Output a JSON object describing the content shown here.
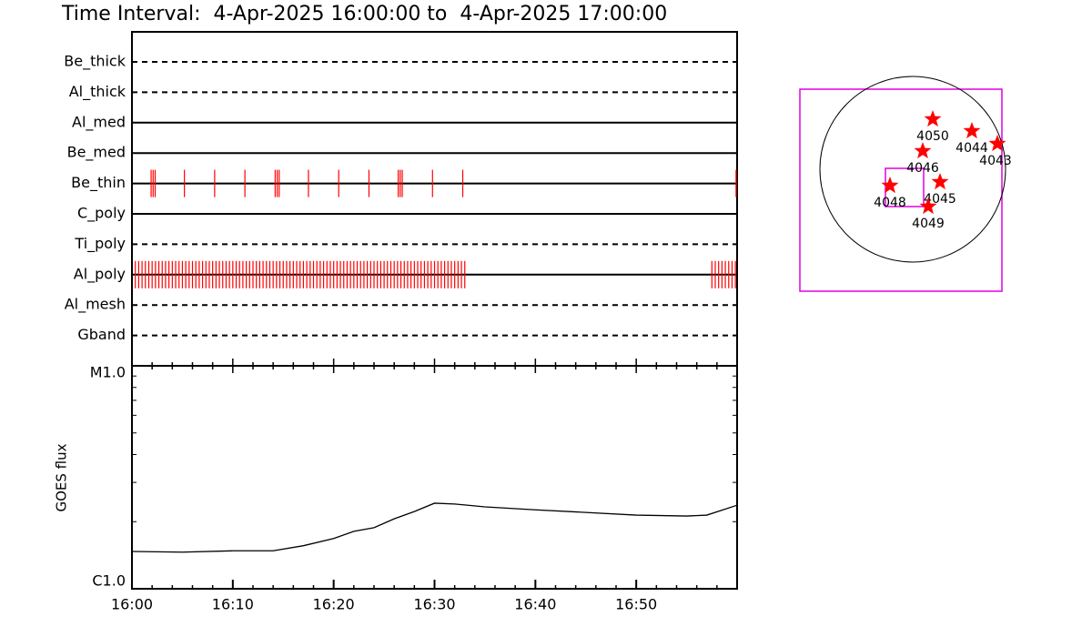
{
  "chart_data": [
    {
      "type": "timeline",
      "title": "Time Interval:  4-Apr-2025 16:00:00 to  4-Apr-2025 17:00:00",
      "xlim": [
        "16:00",
        "17:00"
      ],
      "exposure_color": "#ff0000",
      "filters": [
        {
          "name": "Be_thick",
          "line": "dashed",
          "exposures": []
        },
        {
          "name": "Al_thick",
          "line": "dashed",
          "exposures": []
        },
        {
          "name": "Al_med",
          "line": "solid",
          "exposures": []
        },
        {
          "name": "Be_med",
          "line": "solid",
          "exposures": []
        },
        {
          "name": "Be_thin",
          "line": "solid",
          "exposures": [
            "16:01:54",
            "16:02:06",
            "16:02:18",
            "16:05:12",
            "16:08:12",
            "16:11:12",
            "16:14:12",
            "16:14:24",
            "16:14:36",
            "16:17:30",
            "16:20:30",
            "16:23:30",
            "16:26:24",
            "16:26:36",
            "16:26:48",
            "16:29:48",
            "16:32:48",
            "16:59:54"
          ]
        },
        {
          "name": "C_poly",
          "line": "solid",
          "exposures": []
        },
        {
          "name": "Ti_poly",
          "line": "dashed",
          "exposures": []
        },
        {
          "name": "Al_poly",
          "line": "solid",
          "exposures": [
            "16:00:20",
            "16:00:40",
            "16:01:00",
            "16:01:20",
            "16:01:40",
            "16:02:00",
            "16:02:20",
            "16:02:40",
            "16:03:00",
            "16:03:20",
            "16:03:40",
            "16:04:00",
            "16:04:20",
            "16:04:40",
            "16:05:00",
            "16:05:20",
            "16:05:40",
            "16:06:00",
            "16:06:20",
            "16:06:40",
            "16:07:00",
            "16:07:20",
            "16:07:40",
            "16:08:00",
            "16:08:20",
            "16:08:40",
            "16:09:00",
            "16:09:20",
            "16:09:40",
            "16:10:00",
            "16:10:20",
            "16:10:40",
            "16:11:00",
            "16:11:20",
            "16:11:40",
            "16:12:00",
            "16:12:20",
            "16:12:40",
            "16:13:00",
            "16:13:20",
            "16:13:40",
            "16:14:00",
            "16:14:20",
            "16:14:40",
            "16:15:00",
            "16:15:20",
            "16:15:40",
            "16:16:00",
            "16:16:20",
            "16:16:40",
            "16:17:00",
            "16:17:20",
            "16:17:40",
            "16:18:00",
            "16:18:20",
            "16:18:40",
            "16:19:00",
            "16:19:20",
            "16:19:40",
            "16:20:00",
            "16:20:20",
            "16:20:40",
            "16:21:00",
            "16:21:20",
            "16:21:40",
            "16:22:00",
            "16:22:20",
            "16:22:40",
            "16:23:00",
            "16:23:20",
            "16:23:40",
            "16:24:00",
            "16:24:20",
            "16:24:40",
            "16:25:00",
            "16:25:20",
            "16:25:40",
            "16:26:00",
            "16:26:20",
            "16:26:40",
            "16:27:00",
            "16:27:20",
            "16:27:40",
            "16:28:00",
            "16:28:20",
            "16:28:40",
            "16:29:00",
            "16:29:20",
            "16:29:40",
            "16:30:00",
            "16:30:20",
            "16:30:40",
            "16:31:00",
            "16:31:20",
            "16:31:40",
            "16:32:00",
            "16:32:20",
            "16:32:40",
            "16:33:00",
            "16:57:30",
            "16:57:50",
            "16:58:10",
            "16:58:30",
            "16:58:50",
            "16:59:10",
            "16:59:30",
            "16:59:50"
          ]
        },
        {
          "name": "Al_mesh",
          "line": "dashed",
          "exposures": []
        },
        {
          "name": "Gband",
          "line": "dashed",
          "exposures": []
        }
      ]
    },
    {
      "type": "line",
      "y_label": "GOES flux",
      "log_y": true,
      "xlim": [
        "16:00",
        "17:00"
      ],
      "xticks": [
        "16:00",
        "16:10",
        "16:20",
        "16:30",
        "16:40",
        "16:50"
      ],
      "ylim": [
        1e-06,
        1e-05
      ],
      "yticks": [
        {
          "value": 1e-06,
          "label": "C1.0"
        },
        {
          "value": 1e-05,
          "label": "M1.0"
        }
      ],
      "x": [
        "16:00",
        "16:05",
        "16:10",
        "16:14",
        "16:17",
        "16:20",
        "16:22",
        "16:24",
        "16:26",
        "16:28",
        "16:30",
        "16:32",
        "16:35",
        "16:40",
        "16:45",
        "16:50",
        "16:55",
        "16:57",
        "17:00"
      ],
      "series": [
        {
          "color": "#000000",
          "values": [
            1.47e-06,
            1.46e-06,
            1.48e-06,
            1.48e-06,
            1.56e-06,
            1.68e-06,
            1.81e-06,
            1.88e-06,
            2.06e-06,
            2.22e-06,
            2.42e-06,
            2.4e-06,
            2.33e-06,
            2.26e-06,
            2.2e-06,
            2.14e-06,
            2.12e-06,
            2.14e-06,
            2.37e-06
          ]
        }
      ]
    }
  ],
  "map": {
    "regions": [
      "4050",
      "4044",
      "4043",
      "4046",
      "4045",
      "4048",
      "4049"
    ]
  }
}
